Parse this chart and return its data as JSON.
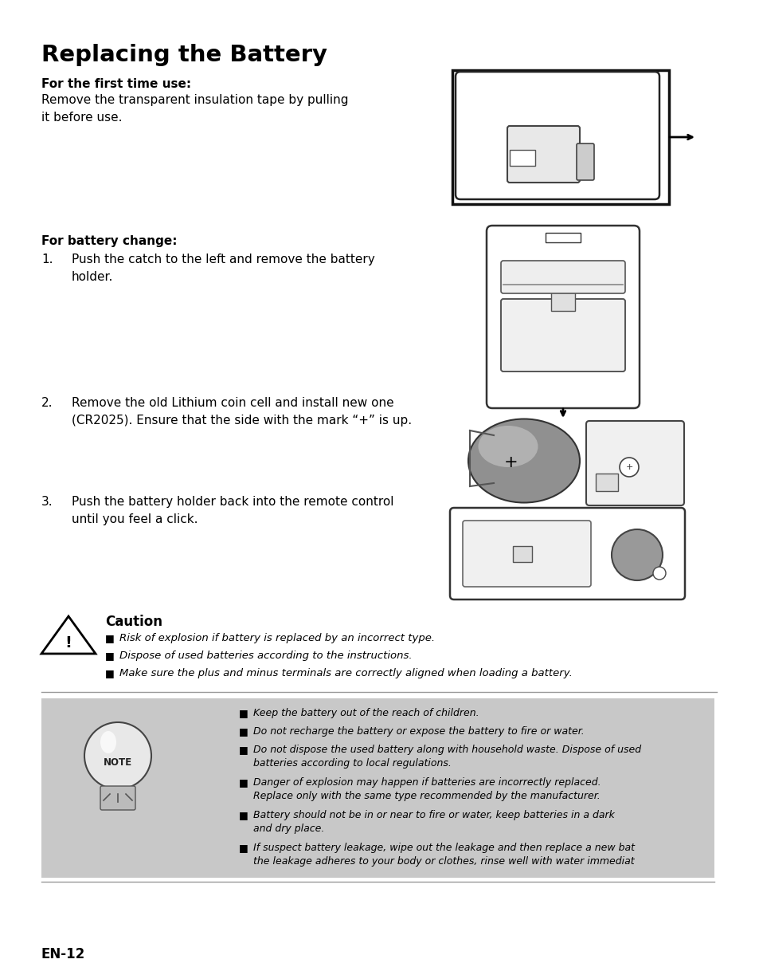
{
  "title": "Replacing the Battery",
  "subtitle_bold": "For the first time use:",
  "subtitle_text": "Remove the transparent insulation tape by pulling\nit before use.",
  "section2_bold": "For battery change:",
  "step1_num": "1.",
  "step1_text": "Push the catch to the left and remove the battery\nholder.",
  "step2_num": "2.",
  "step2_text": "Remove the old Lithium coin cell and install new one\n(CR2025). Ensure that the side with the mark “+” is up.",
  "step3_num": "3.",
  "step3_text": "Push the battery holder back into the remote control\nuntil you feel a click.",
  "caution_title": "Caution",
  "caution_items": [
    "Risk of explosion if battery is replaced by an incorrect type.",
    "Dispose of used batteries according to the instructions.",
    "Make sure the plus and minus terminals are correctly aligned when loading a battery."
  ],
  "note_items": [
    "Keep the battery out of the reach of children.",
    "Do not recharge the battery or expose the battery to fire or water.",
    "Do not dispose the used battery along with household waste. Dispose of used\nbatteries according to local regulations.",
    "Danger of explosion may happen if batteries are incorrectly replaced.\nReplace only with the same type recommended by the manufacturer.",
    "Battery should not be in or near to fire or water, keep batteries in a dark\nand dry place.",
    "If suspect battery leakage, wipe out the leakage and then replace a new bat\nthe leakage adheres to your body or clothes, rinse well with water immediat"
  ],
  "footer": "EN-12",
  "bg_color": "#ffffff",
  "text_color": "#000000",
  "note_bg_color": "#c8c8c8"
}
